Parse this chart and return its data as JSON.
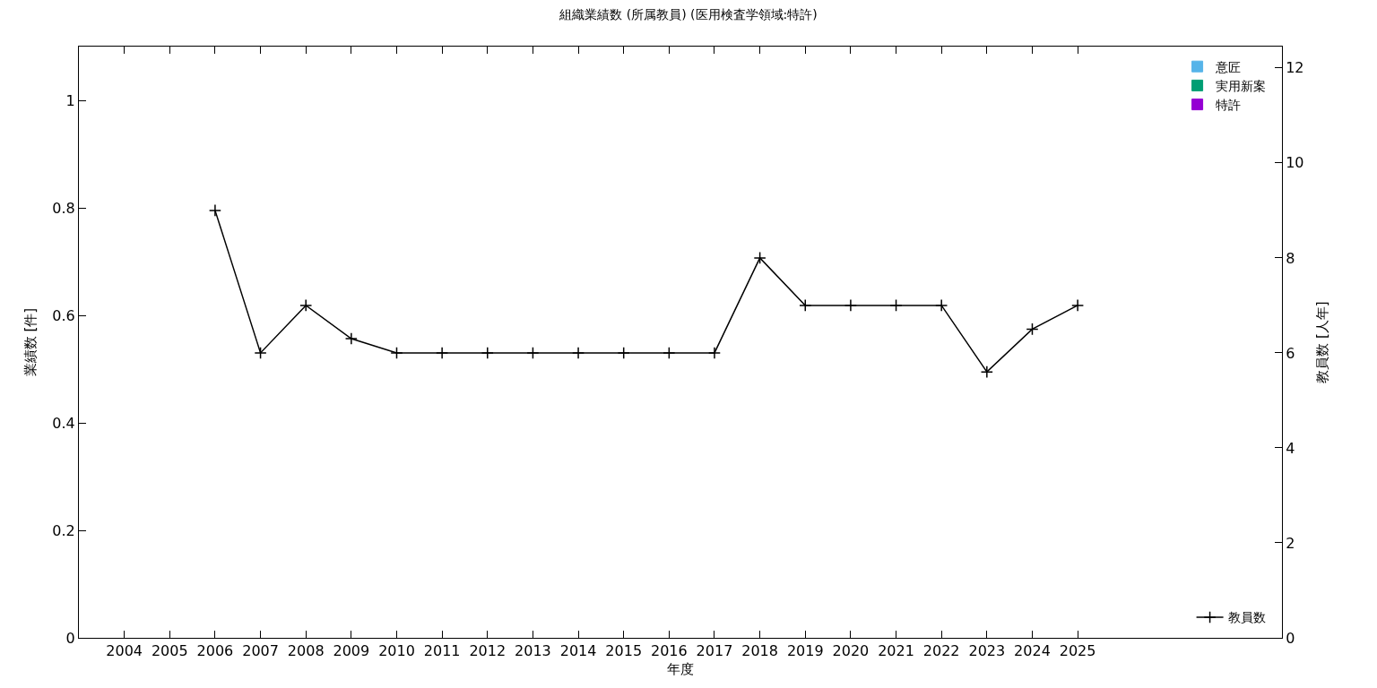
{
  "chart_data": {
    "type": "bar",
    "title": "組織業績数 (所属教員) (医用検査学領域:特許)",
    "xlabel": "年度",
    "ylabel": "業績数 [件]",
    "y2label": "教員数 [人年]",
    "x": [
      2004,
      2005,
      2006,
      2007,
      2008,
      2009,
      2010,
      2011,
      2012,
      2013,
      2014,
      2015,
      2016,
      2017,
      2018,
      2019,
      2020,
      2021,
      2022,
      2023,
      2024,
      2025
    ],
    "stacked": true,
    "series": [
      {
        "name": "特許",
        "color": "#9400d3",
        "values": [
          0,
          0,
          0,
          0,
          0,
          0,
          0,
          0,
          0,
          0,
          0,
          0,
          0,
          0,
          0,
          0,
          0,
          0,
          0,
          0,
          0,
          0
        ]
      },
      {
        "name": "実用新案",
        "color": "#009e73",
        "values": [
          0,
          0,
          0,
          0,
          0,
          0,
          0,
          0,
          0,
          0,
          0,
          0,
          0,
          0,
          0,
          0,
          0,
          0,
          0,
          0,
          0,
          0
        ]
      },
      {
        "name": "意匠",
        "color": "#56b4e9",
        "values": [
          0,
          0,
          0,
          0,
          0,
          0,
          0,
          0,
          0,
          0,
          0,
          0,
          0,
          0,
          0,
          0,
          0,
          0,
          0,
          0,
          0,
          0
        ]
      },
      {
        "name": "教員数",
        "color": "#000000",
        "type": "line",
        "axis": "y2",
        "marker": "cross",
        "values": [
          null,
          null,
          9,
          6,
          7,
          6.3,
          6,
          6,
          6,
          6,
          6,
          6,
          6,
          6,
          8,
          7,
          7,
          7,
          7,
          5.6,
          6.5,
          7
        ]
      }
    ],
    "xlim": [
      2003,
      2029.5
    ],
    "xticks": [
      2004,
      2005,
      2006,
      2007,
      2008,
      2009,
      2010,
      2011,
      2012,
      2013,
      2014,
      2015,
      2016,
      2017,
      2018,
      2019,
      2020,
      2021,
      2022,
      2023,
      2024,
      2025
    ],
    "ylim": [
      0,
      1.1
    ],
    "yticks": [
      0,
      0.2,
      0.4,
      0.6,
      0.8,
      1
    ],
    "y2lim": [
      0,
      12.45
    ],
    "y2ticks": [
      0,
      2,
      4,
      6,
      8,
      10,
      12
    ],
    "legend": "top right"
  }
}
